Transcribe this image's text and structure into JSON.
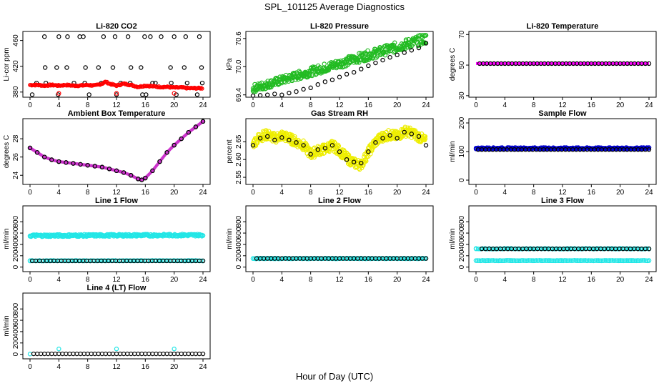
{
  "title": "SPL_101125  Average Diagnostics",
  "xlabel": "Hour of Day (UTC)",
  "chart_data": [
    {
      "type": "scatter",
      "title": "Li-820 CO2",
      "ylabel": "Li-cor ppm",
      "xlim": [
        0,
        24
      ],
      "ylim": [
        372,
        474
      ],
      "yticks": [
        380,
        420,
        460
      ],
      "xticks": [
        0,
        4,
        8,
        12,
        16,
        20,
        24
      ],
      "grid": false,
      "series": [
        {
          "color": "#000000",
          "type": "scatter",
          "x": [
            0.3,
            0.9,
            2.1,
            4.0,
            5.1,
            6.9,
            7.6,
            8.2,
            9.5,
            11.8,
            12.0,
            12.6,
            14.0,
            15.9,
            16.1,
            17.0,
            19.5,
            20.0,
            20.3,
            21.8,
            23.5,
            23.8
          ],
          "y": [
            376,
            394,
            418,
            466,
            418,
            466,
            394,
            376,
            418,
            466,
            376,
            394,
            418,
            466,
            376,
            394,
            418,
            466,
            376,
            394,
            466,
            418
          ]
        },
        {
          "color": "#000000",
          "type": "scatter",
          "x": [
            2.0,
            2.2,
            3.7,
            3.9,
            5.2,
            6.1,
            7.4,
            7.7,
            9.9,
            10.2,
            11.5,
            13.6,
            13.9,
            15.4,
            15.6,
            16.7,
            17.4,
            18.2,
            19.6,
            21.4,
            21.6,
            23.2,
            23.9
          ],
          "y": [
            466,
            394,
            418,
            376,
            466,
            394,
            466,
            418,
            394,
            466,
            418,
            466,
            394,
            418,
            376,
            466,
            394,
            466,
            394,
            418,
            466,
            376,
            394
          ]
        },
        {
          "color": "#ff0000",
          "type": "line",
          "x": [
            0,
            1,
            2,
            3,
            4,
            5,
            6,
            7,
            8,
            9,
            10,
            10.5,
            11,
            12,
            13,
            14,
            15,
            16,
            17,
            18,
            19,
            20,
            21,
            22,
            23,
            24
          ],
          "y": [
            391,
            391,
            390,
            391,
            390,
            391,
            390,
            390,
            391,
            390,
            393,
            396,
            393,
            390,
            393,
            391,
            388,
            390,
            389,
            388,
            388,
            387,
            387,
            386,
            386,
            386
          ]
        },
        {
          "color": "#ff0000",
          "type": "scatter",
          "x": [
            4.0,
            12.0,
            20.0
          ],
          "y": [
            378,
            378,
            378
          ]
        }
      ]
    },
    {
      "type": "scatter",
      "title": "Li-820 Pressure",
      "ylabel": "kPa",
      "xlim": [
        0,
        24
      ],
      "ylim": [
        69.35,
        70.75
      ],
      "yticks": [
        69.4,
        70.0,
        70.6
      ],
      "yticklabels": [
        "69.4",
        "70.0",
        "70.6"
      ],
      "xticks": [
        0,
        4,
        8,
        12,
        16,
        20,
        24
      ],
      "grid": false,
      "series": [
        {
          "color": "#22bb22",
          "type": "band",
          "x0": 0,
          "x1": 24,
          "y0": [
            69.45,
            69.62
          ],
          "y1": [
            70.49,
            70.71
          ],
          "n": 200
        },
        {
          "color": "#000000",
          "type": "scatter",
          "x": [
            0,
            1,
            2,
            3,
            4,
            5,
            6,
            7,
            8,
            9,
            10,
            11,
            12,
            13,
            14,
            15,
            16,
            17,
            18,
            19,
            20,
            21,
            22,
            23,
            24
          ],
          "y": [
            69.38,
            69.39,
            69.4,
            69.42,
            69.4,
            69.44,
            69.47,
            69.52,
            69.55,
            69.62,
            69.68,
            69.72,
            69.78,
            69.84,
            69.88,
            69.95,
            70.02,
            70.08,
            70.14,
            70.2,
            70.25,
            70.3,
            70.35,
            70.4,
            70.5
          ]
        }
      ]
    },
    {
      "type": "scatter",
      "title": "Li-820 Temperature",
      "ylabel": "degrees C",
      "xlim": [
        0,
        24
      ],
      "ylim": [
        29,
        72
      ],
      "yticks": [
        30,
        50,
        70
      ],
      "xticks": [
        0,
        4,
        8,
        12,
        16,
        20,
        24
      ],
      "grid": false,
      "series": [
        {
          "color": "#ff00ff",
          "type": "line",
          "x": [
            0,
            24
          ],
          "y": [
            51,
            51
          ]
        },
        {
          "color": "#000000",
          "type": "scatter",
          "x0": 0.5,
          "x1": 24,
          "n": 48,
          "y": 51
        }
      ]
    },
    {
      "type": "scatter",
      "title": "Ambient Box Temperature",
      "ylabel": "degrees C",
      "xlim": [
        0,
        24
      ],
      "ylim": [
        23.0,
        30.2
      ],
      "yticks": [
        24,
        26,
        28
      ],
      "xticks": [
        0,
        4,
        8,
        12,
        16,
        20,
        24
      ],
      "grid": false,
      "series": [
        {
          "color": "#000000",
          "type": "scatter",
          "x": [
            0,
            1,
            2,
            3,
            4,
            5,
            6,
            7,
            8,
            9,
            10,
            11,
            12,
            13,
            14,
            15,
            15.5,
            16,
            17,
            18,
            19,
            20,
            21,
            22,
            23,
            24
          ],
          "y": [
            27.0,
            26.5,
            26.0,
            25.7,
            25.5,
            25.4,
            25.3,
            25.2,
            25.1,
            25.0,
            24.9,
            24.7,
            24.5,
            24.3,
            24.0,
            23.6,
            23.5,
            23.7,
            24.5,
            25.5,
            26.5,
            27.3,
            28.0,
            28.7,
            29.3,
            29.9
          ],
          "marker_fill": "#cc33cc"
        }
      ]
    },
    {
      "type": "scatter",
      "title": "Gas Stream RH",
      "ylabel": "percent",
      "xlim": [
        0,
        24
      ],
      "ylim": [
        2.53,
        2.715
      ],
      "yticks": [
        2.55,
        2.6,
        2.65
      ],
      "yticklabels": [
        "2.55",
        "2.60",
        "2.65"
      ],
      "xticks": [
        0,
        4,
        8,
        12,
        16,
        20,
        24
      ],
      "grid": false,
      "series": [
        {
          "color": "#eeee00",
          "type": "cloud",
          "x": [
            0,
            1,
            2,
            3,
            4,
            5,
            6,
            7,
            8,
            9,
            10,
            11,
            12,
            13,
            14,
            15,
            16,
            17,
            18,
            19,
            20,
            21,
            22,
            23,
            24
          ],
          "y": [
            2.645,
            2.665,
            2.67,
            2.66,
            2.668,
            2.66,
            2.65,
            2.64,
            2.615,
            2.625,
            2.63,
            2.64,
            2.625,
            2.605,
            2.59,
            2.585,
            2.62,
            2.65,
            2.665,
            2.67,
            2.665,
            2.68,
            2.675,
            2.665,
            2.65
          ],
          "spread": 0.014
        },
        {
          "color": "#000000",
          "type": "scatter",
          "x": [
            0,
            1,
            2,
            3,
            4,
            5,
            6,
            7,
            8,
            9,
            10,
            11,
            12,
            13,
            14,
            15,
            16,
            17,
            18,
            19,
            20,
            21,
            22,
            23,
            24
          ],
          "y": [
            2.64,
            2.66,
            2.665,
            2.655,
            2.662,
            2.655,
            2.648,
            2.64,
            2.615,
            2.628,
            2.632,
            2.64,
            2.622,
            2.6,
            2.593,
            2.59,
            2.622,
            2.648,
            2.66,
            2.668,
            2.66,
            2.677,
            2.672,
            2.665,
            2.64
          ]
        }
      ]
    },
    {
      "type": "scatter",
      "title": "Sample Flow",
      "ylabel": "ml/min",
      "xlim": [
        0,
        24
      ],
      "ylim": [
        -15,
        215
      ],
      "yticks": [
        0,
        100,
        200
      ],
      "xticks": [
        0,
        4,
        8,
        12,
        16,
        20,
        24
      ],
      "grid": false,
      "series": [
        {
          "color": "#0000cc",
          "type": "band",
          "x0": 0,
          "x1": 24,
          "y0": [
            108,
            114
          ],
          "y1": [
            108,
            114
          ],
          "n": 160
        },
        {
          "color": "#000000",
          "type": "scatter",
          "x0": 0.3,
          "x1": 24,
          "n": 48,
          "y": 107
        }
      ]
    },
    {
      "type": "scatter",
      "title": "Line 1 Flow",
      "ylabel": "ml/min",
      "xlim": [
        0,
        24
      ],
      "ylim": [
        -80,
        1080
      ],
      "yticks": [
        0,
        200,
        400,
        600,
        800
      ],
      "xticks": [
        0,
        4,
        8,
        12,
        16,
        20,
        24
      ],
      "grid": false,
      "series": [
        {
          "color": "#22e6e6",
          "type": "band",
          "x0": 0,
          "x1": 24,
          "y0": [
            535,
            575
          ],
          "y1": [
            545,
            585
          ],
          "n": 160
        },
        {
          "color": "#22e6e6",
          "type": "band",
          "x0": 0,
          "x1": 24,
          "y0": [
            108,
            116
          ],
          "y1": [
            108,
            116
          ],
          "n": 90
        },
        {
          "color": "#000000",
          "type": "scatter",
          "x0": 0.3,
          "x1": 24,
          "n": 48,
          "y": 110
        }
      ]
    },
    {
      "type": "scatter",
      "title": "Line 2 Flow",
      "ylabel": "ml/min",
      "xlim": [
        0,
        24
      ],
      "ylim": [
        -80,
        1080
      ],
      "yticks": [
        0,
        200,
        400,
        600,
        800
      ],
      "xticks": [
        0,
        4,
        8,
        12,
        16,
        20,
        24
      ],
      "grid": false,
      "series": [
        {
          "color": "#22e6e6",
          "type": "band",
          "x0": 0,
          "x1": 24,
          "y0": [
            145,
            158
          ],
          "y1": [
            145,
            158
          ],
          "n": 110
        },
        {
          "color": "#000000",
          "type": "scatter",
          "x0": 0.5,
          "x1": 24,
          "n": 48,
          "y": 152
        }
      ]
    },
    {
      "type": "scatter",
      "title": "Line 3 Flow",
      "ylabel": "ml/min",
      "xlim": [
        0,
        24
      ],
      "ylim": [
        -80,
        1080
      ],
      "yticks": [
        0,
        200,
        400,
        600,
        800
      ],
      "xticks": [
        0,
        4,
        8,
        12,
        16,
        20,
        24
      ],
      "grid": false,
      "series": [
        {
          "color": "#22e6e6",
          "type": "band",
          "x0": 0,
          "x1": 24,
          "y0": [
            110,
            118
          ],
          "y1": [
            110,
            118
          ],
          "n": 110
        },
        {
          "color": "#22e6e6",
          "type": "band",
          "x0": 0,
          "x1": 24,
          "y0": [
            318,
            330
          ],
          "y1": [
            318,
            330
          ],
          "n": 80
        },
        {
          "color": "#000000",
          "type": "scatter",
          "x0": 0.8,
          "x1": 24,
          "n": 46,
          "y": 322
        }
      ]
    },
    {
      "type": "scatter",
      "title": "Line 4 (LT) Flow",
      "ylabel": "ml/min",
      "xlim": [
        0,
        24
      ],
      "ylim": [
        -80,
        1080
      ],
      "yticks": [
        0,
        200,
        400,
        600,
        800
      ],
      "xticks": [
        0,
        4,
        8,
        12,
        16,
        20,
        24
      ],
      "grid": false,
      "series": [
        {
          "color": "#22e6e6",
          "type": "scatter",
          "x": [
            0,
            4,
            12,
            20
          ],
          "y": [
            5,
            95,
            95,
            95
          ]
        },
        {
          "color": "#000000",
          "type": "scatter",
          "x0": 0.5,
          "x1": 24,
          "n": 48,
          "y": 8
        }
      ]
    }
  ]
}
